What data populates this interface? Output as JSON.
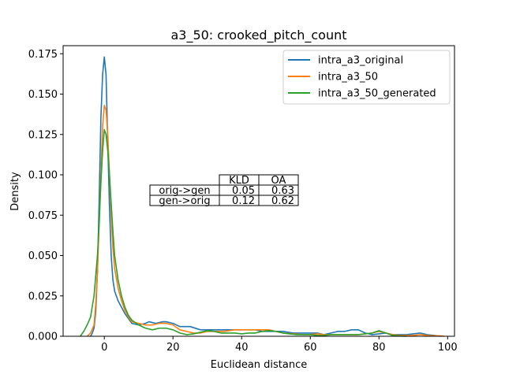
{
  "chart_data": {
    "type": "line",
    "title": "a3_50: crooked_pitch_count",
    "xlabel": "Euclidean distance",
    "ylabel": "Density",
    "xlim": [
      -12,
      102
    ],
    "ylim": [
      0,
      0.18
    ],
    "xticks": [
      0,
      20,
      40,
      60,
      80,
      100
    ],
    "yticks": [
      0.0,
      0.025,
      0.05,
      0.075,
      0.1,
      0.125,
      0.15,
      0.175
    ],
    "xtick_labels": [
      "0",
      "20",
      "40",
      "60",
      "80",
      "100"
    ],
    "ytick_labels": [
      "0.000",
      "0.025",
      "0.050",
      "0.075",
      "0.100",
      "0.125",
      "0.150",
      "0.175"
    ],
    "legend_position": "top-right",
    "series": [
      {
        "name": "intra_a3_original",
        "color": "#1f77b4",
        "points": [
          [
            -4,
            0
          ],
          [
            -3.5,
            0.002
          ],
          [
            -3,
            0.005
          ],
          [
            -2.5,
            0.015
          ],
          [
            -2,
            0.04
          ],
          [
            -1.5,
            0.085
          ],
          [
            -1,
            0.135
          ],
          [
            -0.5,
            0.162
          ],
          [
            0,
            0.173
          ],
          [
            0.5,
            0.162
          ],
          [
            1,
            0.12
          ],
          [
            1.5,
            0.08
          ],
          [
            2,
            0.05
          ],
          [
            2.5,
            0.035
          ],
          [
            3,
            0.028
          ],
          [
            4,
            0.022
          ],
          [
            5,
            0.018
          ],
          [
            6,
            0.014
          ],
          [
            7,
            0.011
          ],
          [
            8,
            0.008
          ],
          [
            10,
            0.007
          ],
          [
            12,
            0.008
          ],
          [
            13,
            0.009
          ],
          [
            15,
            0.008
          ],
          [
            17,
            0.009
          ],
          [
            18,
            0.009
          ],
          [
            20,
            0.008
          ],
          [
            22,
            0.006
          ],
          [
            25,
            0.006
          ],
          [
            28,
            0.004
          ],
          [
            30,
            0.004
          ],
          [
            33,
            0.004
          ],
          [
            36,
            0.004
          ],
          [
            40,
            0.004
          ],
          [
            44,
            0.004
          ],
          [
            46,
            0.003
          ],
          [
            48,
            0.003
          ],
          [
            50,
            0.003
          ],
          [
            52,
            0.003
          ],
          [
            55,
            0.002
          ],
          [
            58,
            0.002
          ],
          [
            60,
            0.002
          ],
          [
            62,
            0.002
          ],
          [
            64,
            0.001
          ],
          [
            66,
            0.002
          ],
          [
            68,
            0.003
          ],
          [
            70,
            0.003
          ],
          [
            72,
            0.004
          ],
          [
            74,
            0.004
          ],
          [
            76,
            0.002
          ],
          [
            78,
            0.001
          ],
          [
            80,
            0.0015
          ],
          [
            82,
            0.002
          ],
          [
            84,
            0.001
          ],
          [
            86,
            0.001
          ],
          [
            88,
            0.001
          ],
          [
            90,
            0.0015
          ],
          [
            92,
            0.002
          ],
          [
            94,
            0.001
          ],
          [
            96,
            0.0005
          ],
          [
            98,
            0
          ]
        ]
      },
      {
        "name": "intra_a3_50",
        "color": "#ff7f0e",
        "points": [
          [
            -5,
            0
          ],
          [
            -4,
            0.002
          ],
          [
            -3,
            0.007
          ],
          [
            -2.5,
            0.02
          ],
          [
            -2,
            0.04
          ],
          [
            -1.5,
            0.07
          ],
          [
            -1,
            0.1
          ],
          [
            -0.5,
            0.13
          ],
          [
            0,
            0.143
          ],
          [
            0.5,
            0.14
          ],
          [
            1,
            0.125
          ],
          [
            1.5,
            0.1
          ],
          [
            2,
            0.075
          ],
          [
            2.5,
            0.055
          ],
          [
            3,
            0.042
          ],
          [
            4,
            0.03
          ],
          [
            5,
            0.022
          ],
          [
            6,
            0.016
          ],
          [
            7,
            0.012
          ],
          [
            8,
            0.009
          ],
          [
            10,
            0.008
          ],
          [
            12,
            0.007
          ],
          [
            14,
            0.007
          ],
          [
            16,
            0.008
          ],
          [
            18,
            0.008
          ],
          [
            20,
            0.007
          ],
          [
            22,
            0.004
          ],
          [
            24,
            0.003
          ],
          [
            26,
            0.002
          ],
          [
            28,
            0.002
          ],
          [
            30,
            0.003
          ],
          [
            32,
            0.003
          ],
          [
            35,
            0.003
          ],
          [
            38,
            0.004
          ],
          [
            40,
            0.004
          ],
          [
            42,
            0.004
          ],
          [
            45,
            0.004
          ],
          [
            48,
            0.004
          ],
          [
            50,
            0.003
          ],
          [
            52,
            0.002
          ],
          [
            55,
            0.0015
          ],
          [
            58,
            0.001
          ],
          [
            60,
            0.001
          ],
          [
            62,
            0.0015
          ],
          [
            64,
            0.001
          ],
          [
            66,
            0.001
          ],
          [
            68,
            0.001
          ],
          [
            70,
            0.001
          ],
          [
            72,
            0.001
          ],
          [
            74,
            0.001
          ],
          [
            76,
            0.0015
          ],
          [
            78,
            0.002
          ],
          [
            80,
            0.003
          ],
          [
            82,
            0.002
          ],
          [
            84,
            0.001
          ],
          [
            86,
            0.0005
          ],
          [
            88,
            0.0005
          ],
          [
            90,
            0.0005
          ],
          [
            92,
            0.001
          ],
          [
            94,
            0.0005
          ],
          [
            96,
            0.0003
          ],
          [
            98,
            0.0002
          ],
          [
            99,
            0
          ]
        ]
      },
      {
        "name": "intra_a3_50_generated",
        "color": "#2ca02c",
        "points": [
          [
            -7,
            0
          ],
          [
            -6,
            0.003
          ],
          [
            -5,
            0.007
          ],
          [
            -4,
            0.012
          ],
          [
            -3,
            0.025
          ],
          [
            -2,
            0.05
          ],
          [
            -1.5,
            0.07
          ],
          [
            -1,
            0.095
          ],
          [
            -0.5,
            0.115
          ],
          [
            0,
            0.128
          ],
          [
            0.5,
            0.125
          ],
          [
            1,
            0.115
          ],
          [
            1.5,
            0.1
          ],
          [
            2,
            0.082
          ],
          [
            2.5,
            0.065
          ],
          [
            3,
            0.05
          ],
          [
            4,
            0.035
          ],
          [
            5,
            0.025
          ],
          [
            6,
            0.018
          ],
          [
            7,
            0.013
          ],
          [
            8,
            0.01
          ],
          [
            10,
            0.007
          ],
          [
            12,
            0.005
          ],
          [
            14,
            0.004
          ],
          [
            16,
            0.005
          ],
          [
            18,
            0.005
          ],
          [
            20,
            0.004
          ],
          [
            22,
            0.002
          ],
          [
            24,
            0.001
          ],
          [
            26,
            0.0015
          ],
          [
            28,
            0.0025
          ],
          [
            30,
            0.0035
          ],
          [
            32,
            0.003
          ],
          [
            34,
            0.002
          ],
          [
            36,
            0.002
          ],
          [
            38,
            0.002
          ],
          [
            40,
            0.0015
          ],
          [
            42,
            0.002
          ],
          [
            44,
            0.002
          ],
          [
            46,
            0.003
          ],
          [
            48,
            0.0035
          ],
          [
            50,
            0.003
          ],
          [
            52,
            0.002
          ],
          [
            54,
            0.0015
          ],
          [
            56,
            0.001
          ],
          [
            58,
            0.001
          ],
          [
            60,
            0.001
          ],
          [
            62,
            0.0005
          ],
          [
            64,
            0.0005
          ],
          [
            66,
            0.001
          ],
          [
            68,
            0.001
          ],
          [
            70,
            0.001
          ],
          [
            72,
            0.001
          ],
          [
            74,
            0.001
          ],
          [
            76,
            0.0015
          ],
          [
            78,
            0.002
          ],
          [
            80,
            0.0035
          ],
          [
            82,
            0.002
          ],
          [
            84,
            0.0005
          ],
          [
            86,
            0.0002
          ],
          [
            88,
            0
          ]
        ]
      }
    ],
    "table": {
      "headers": [
        "",
        "KLD",
        "OA"
      ],
      "rows": [
        [
          "orig->gen",
          "0.05",
          "0.63"
        ],
        [
          "gen->orig",
          "0.12",
          "0.62"
        ]
      ]
    }
  }
}
